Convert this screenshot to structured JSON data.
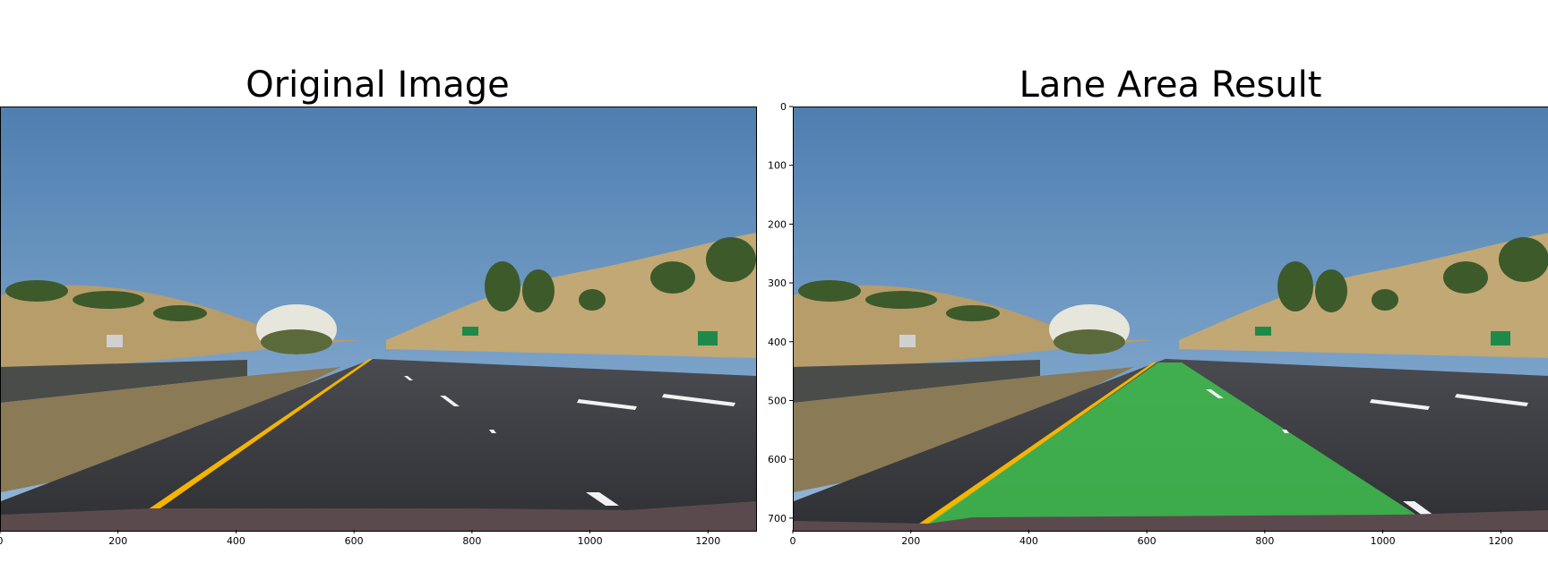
{
  "left_panel": {
    "title": "Original Image",
    "x_ticks": [
      "0",
      "200",
      "400",
      "600",
      "800",
      "1000",
      "1200"
    ]
  },
  "right_panel": {
    "title": "Lane Area Result",
    "x_ticks": [
      "0",
      "200",
      "400",
      "600",
      "800",
      "1000",
      "1200"
    ],
    "y_ticks": [
      "0",
      "100",
      "200",
      "300",
      "400",
      "500",
      "600",
      "700"
    ]
  },
  "colors": {
    "sky_top": "#4f7fb0",
    "sky_bottom": "#8fb3d6",
    "hill": "#b79d6a",
    "road": "#3b3c40",
    "lane_yellow": "#f4b400",
    "lane_fill": "#3fbf4f",
    "hood": "#5a4a4e"
  }
}
